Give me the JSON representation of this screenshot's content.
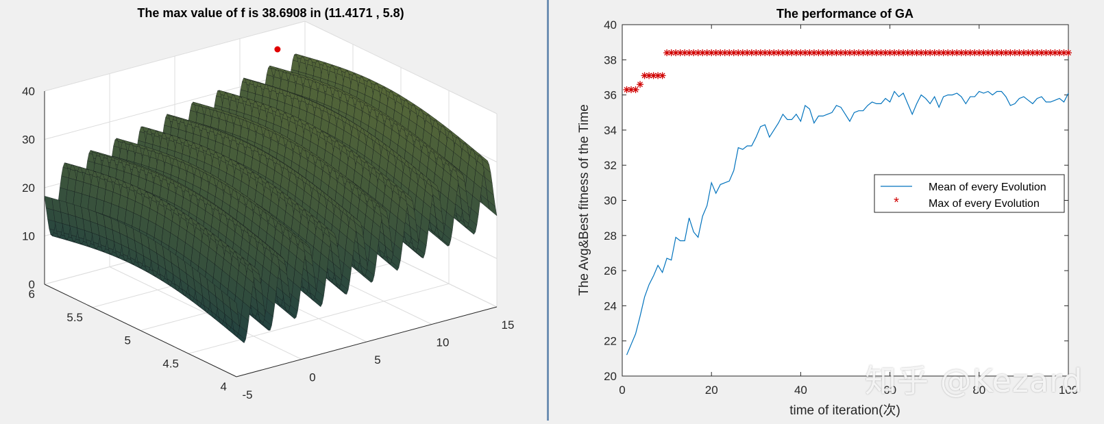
{
  "chart_data": [
    {
      "type": "surface3d",
      "title": "The max value of f is 38.6908 in (11.4171 , 5.8)",
      "xlabel": "",
      "ylabel": "",
      "zlabel": "",
      "x_ticks": [
        "-5",
        "0",
        "5",
        "10",
        "15"
      ],
      "y_ticks": [
        "4",
        "4.5",
        "5",
        "5.5",
        "6"
      ],
      "z_ticks": [
        "0",
        "10",
        "20",
        "30",
        "40"
      ],
      "xlim": [
        -5,
        15
      ],
      "ylim": [
        4,
        6
      ],
      "zlim": [
        0,
        40
      ],
      "max_point": {
        "x": 11.4171,
        "y": 5.8,
        "z": 38.6908
      },
      "colors": {
        "max_point": "#e00000"
      }
    },
    {
      "type": "line",
      "title": "The performance of GA",
      "xlabel": "time of iteration(次)",
      "ylabel": "The Avg&Best fitness of the Time",
      "xlim": [
        0,
        100
      ],
      "ylim": [
        20,
        40
      ],
      "x_ticks": [
        "0",
        "20",
        "40",
        "60",
        "80",
        "100"
      ],
      "y_ticks": [
        "20",
        "22",
        "24",
        "26",
        "28",
        "30",
        "32",
        "34",
        "36",
        "38",
        "40"
      ],
      "legend_position": "right",
      "series": [
        {
          "name": "Mean of every Evolution",
          "marker": "line",
          "color": "#0072bd",
          "x": [
            1,
            2,
            3,
            4,
            5,
            6,
            7,
            8,
            9,
            10,
            11,
            12,
            13,
            14,
            15,
            16,
            17,
            18,
            19,
            20,
            21,
            22,
            23,
            24,
            25,
            26,
            27,
            28,
            29,
            30,
            31,
            32,
            33,
            34,
            35,
            36,
            37,
            38,
            39,
            40,
            41,
            42,
            43,
            44,
            45,
            46,
            47,
            48,
            49,
            50,
            51,
            52,
            53,
            54,
            55,
            56,
            57,
            58,
            59,
            60,
            61,
            62,
            63,
            64,
            65,
            66,
            67,
            68,
            69,
            70,
            71,
            72,
            73,
            74,
            75,
            76,
            77,
            78,
            79,
            80,
            81,
            82,
            83,
            84,
            85,
            86,
            87,
            88,
            89,
            90,
            91,
            92,
            93,
            94,
            95,
            96,
            97,
            98,
            99,
            100
          ],
          "values": [
            21.2,
            21.8,
            22.4,
            23.4,
            24.5,
            25.2,
            25.7,
            26.3,
            25.9,
            26.7,
            26.6,
            27.9,
            27.7,
            27.7,
            29.0,
            28.2,
            27.9,
            29.1,
            29.7,
            31.0,
            30.4,
            30.9,
            31.0,
            31.1,
            31.7,
            33.0,
            32.9,
            33.1,
            33.1,
            33.6,
            34.2,
            34.3,
            33.6,
            34.0,
            34.4,
            34.9,
            34.6,
            34.6,
            34.9,
            34.5,
            35.4,
            35.2,
            34.4,
            34.8,
            34.8,
            34.9,
            35.0,
            35.4,
            35.3,
            34.9,
            34.5,
            35.0,
            35.1,
            35.1,
            35.4,
            35.6,
            35.5,
            35.5,
            35.8,
            35.6,
            36.2,
            35.9,
            36.1,
            35.5,
            34.9,
            35.5,
            36.0,
            35.8,
            35.5,
            35.9,
            35.3,
            35.9,
            36.0,
            36.0,
            36.1,
            35.9,
            35.5,
            35.9,
            35.9,
            36.2,
            36.1,
            36.2,
            36.0,
            36.2,
            36.2,
            35.9,
            35.4,
            35.5,
            35.8,
            35.9,
            35.7,
            35.5,
            35.8,
            35.9,
            35.6,
            35.6,
            35.7,
            35.8,
            35.6,
            36.1
          ]
        },
        {
          "name": "Max of every Evolution",
          "marker": "asterisk",
          "color": "#d00000",
          "x": [
            1,
            2,
            3,
            4,
            5,
            6,
            7,
            8,
            9,
            10,
            11,
            12,
            13,
            14,
            15,
            16,
            17,
            18,
            19,
            20,
            21,
            22,
            23,
            24,
            25,
            26,
            27,
            28,
            29,
            30,
            31,
            32,
            33,
            34,
            35,
            36,
            37,
            38,
            39,
            40,
            41,
            42,
            43,
            44,
            45,
            46,
            47,
            48,
            49,
            50,
            51,
            52,
            53,
            54,
            55,
            56,
            57,
            58,
            59,
            60,
            61,
            62,
            63,
            64,
            65,
            66,
            67,
            68,
            69,
            70,
            71,
            72,
            73,
            74,
            75,
            76,
            77,
            78,
            79,
            80,
            81,
            82,
            83,
            84,
            85,
            86,
            87,
            88,
            89,
            90,
            91,
            92,
            93,
            94,
            95,
            96,
            97,
            98,
            99,
            100
          ],
          "values": [
            36.3,
            36.3,
            36.3,
            36.6,
            37.1,
            37.1,
            37.1,
            37.1,
            37.1,
            38.4,
            38.4,
            38.4,
            38.4,
            38.4,
            38.4,
            38.4,
            38.4,
            38.4,
            38.4,
            38.4,
            38.4,
            38.4,
            38.4,
            38.4,
            38.4,
            38.4,
            38.4,
            38.4,
            38.4,
            38.4,
            38.4,
            38.4,
            38.4,
            38.4,
            38.4,
            38.4,
            38.4,
            38.4,
            38.4,
            38.4,
            38.4,
            38.4,
            38.4,
            38.4,
            38.4,
            38.4,
            38.4,
            38.4,
            38.4,
            38.4,
            38.4,
            38.4,
            38.4,
            38.4,
            38.4,
            38.4,
            38.4,
            38.4,
            38.4,
            38.4,
            38.4,
            38.4,
            38.4,
            38.4,
            38.4,
            38.4,
            38.4,
            38.4,
            38.4,
            38.4,
            38.4,
            38.4,
            38.4,
            38.4,
            38.4,
            38.4,
            38.4,
            38.4,
            38.4,
            38.4,
            38.4,
            38.4,
            38.4,
            38.4,
            38.4,
            38.4,
            38.4,
            38.4,
            38.4,
            38.4,
            38.4,
            38.4,
            38.4,
            38.4,
            38.4,
            38.4,
            38.4,
            38.4,
            38.4,
            38.4
          ]
        }
      ]
    }
  ],
  "watermark": "知乎 @Kezard"
}
